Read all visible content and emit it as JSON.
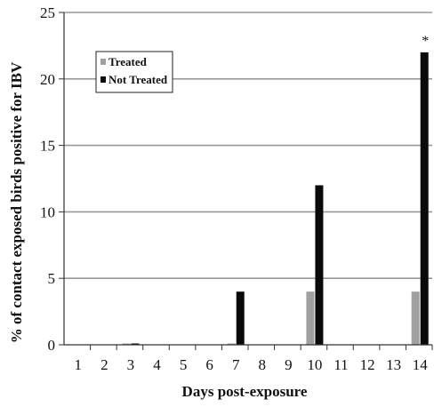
{
  "chart_data": {
    "type": "bar",
    "title": "",
    "xlabel": "Days post-exposure",
    "ylabel": "% of contact exposed birds positive for IBV",
    "categories": [
      "1",
      "2",
      "3",
      "4",
      "5",
      "6",
      "7",
      "8",
      "9",
      "10",
      "11",
      "12",
      "13",
      "14"
    ],
    "ylim": [
      0,
      25
    ],
    "yticks": [
      0,
      5,
      10,
      15,
      20,
      25
    ],
    "grid": true,
    "legend_position": "top-left",
    "series": [
      {
        "name": "Treated",
        "color": "#a0a0a0",
        "values": [
          0,
          0,
          0.1,
          0,
          0,
          0,
          0.1,
          0,
          0,
          4,
          0,
          0,
          0,
          4
        ]
      },
      {
        "name": "Not Treated",
        "color": "#0a0a0a",
        "values": [
          0,
          0,
          0.1,
          0,
          0,
          0,
          4,
          0,
          0,
          12,
          0,
          0,
          0,
          22
        ]
      }
    ],
    "annotations": [
      {
        "category": "14",
        "text": "*"
      }
    ]
  }
}
